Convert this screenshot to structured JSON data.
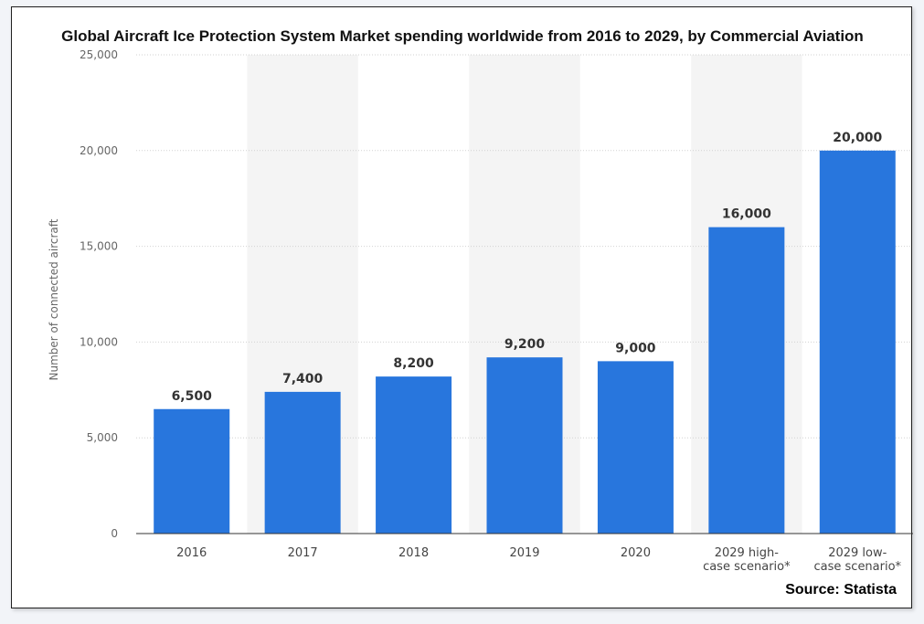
{
  "chart_data": {
    "type": "bar",
    "title": "Global Aircraft Ice Protection System Market spending worldwide from 2016 to 2029, by Commercial Aviation",
    "xlabel": "",
    "ylabel": "Number of connected aircraft",
    "categories": [
      [
        "2016"
      ],
      [
        "2017"
      ],
      [
        "2018"
      ],
      [
        "2019"
      ],
      [
        "2020"
      ],
      [
        "2029 high-",
        "case scenario*"
      ],
      [
        "2029 low-",
        "case scenario*"
      ]
    ],
    "values": [
      6500,
      7400,
      8200,
      9200,
      9000,
      16000,
      20000
    ],
    "value_labels": [
      "6,500",
      "7,400",
      "8,200",
      "9,200",
      "9,000",
      "16,000",
      "20,000"
    ],
    "yticks": [
      0,
      5000,
      10000,
      15000,
      20000,
      25000
    ],
    "ytick_labels": [
      "0",
      "5,000",
      "10,000",
      "15,000",
      "20,000",
      "25,000"
    ],
    "ylim": [
      0,
      25000
    ],
    "grid": true,
    "bar_color": "#2876dd",
    "source": "Source: Statista"
  }
}
